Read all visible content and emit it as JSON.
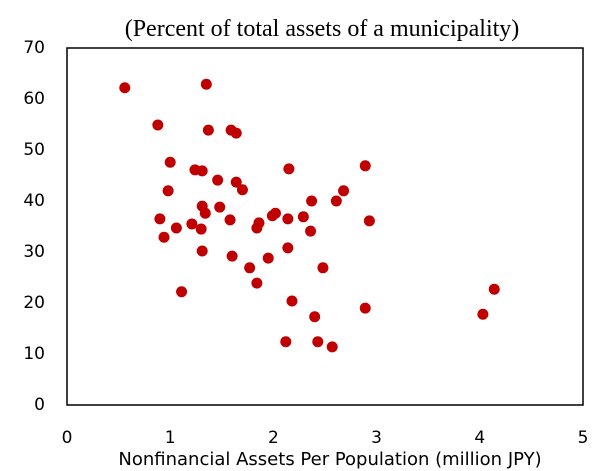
{
  "chart_data": {
    "type": "scatter",
    "subtitle": "(Percent of total assets of a municipality)",
    "x_label": "Nonfinancial Assets Per Population (million JPY)",
    "color": "#c00000",
    "xlim": [
      0,
      5
    ],
    "xticks": [
      0,
      1,
      2,
      3,
      4,
      5
    ],
    "ylim": [
      0,
      70
    ],
    "yticks": [
      0,
      10,
      20,
      30,
      40,
      50,
      60,
      70
    ],
    "x": [
      0.56,
      1.35,
      0.88,
      1.37,
      1.59,
      1.64,
      1.0,
      1.31,
      1.24,
      2.15,
      2.89,
      1.46,
      1.64,
      1.7,
      0.98,
      2.68,
      2.61,
      2.37,
      2.93,
      1.31,
      1.48,
      1.34,
      1.58,
      2.02,
      1.99,
      0.9,
      2.29,
      2.14,
      1.86,
      1.84,
      1.06,
      1.21,
      1.3,
      2.36,
      0.94,
      1.31,
      2.14,
      1.6,
      1.95,
      1.77,
      2.48,
      1.84,
      1.11,
      2.18,
      2.89,
      4.14,
      4.03,
      2.4,
      2.12,
      2.43,
      2.57
    ],
    "values": [
      62.2,
      62.9,
      54.9,
      53.9,
      53.9,
      53.3,
      47.6,
      45.9,
      46.1,
      46.3,
      46.9,
      44.1,
      43.7,
      42.2,
      42.0,
      42.0,
      40.0,
      40.0,
      36.1,
      39.0,
      38.8,
      37.6,
      36.3,
      37.6,
      37.1,
      36.5,
      36.9,
      36.5,
      35.7,
      34.7,
      34.7,
      35.5,
      34.5,
      34.1,
      32.9,
      30.2,
      30.8,
      29.2,
      28.8,
      26.9,
      26.9,
      23.9,
      22.2,
      20.4,
      19.0,
      22.7,
      17.8,
      17.3,
      12.4,
      12.4,
      11.4
    ]
  }
}
